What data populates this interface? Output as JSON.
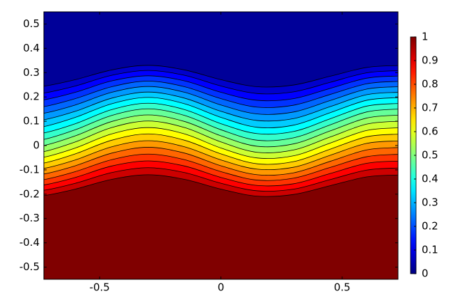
{
  "chart_data": {
    "type": "contour",
    "colormap": "jet",
    "line_color": "#000000",
    "xlim": [
      -0.73,
      0.73
    ],
    "ylim": [
      -0.55,
      0.55
    ],
    "zlim": [
      0,
      1
    ],
    "xticks": [
      -0.5,
      0,
      0.5
    ],
    "yticks": [
      -0.5,
      -0.4,
      -0.3,
      -0.2,
      -0.1,
      0,
      0.1,
      0.2,
      0.3,
      0.4,
      0.5
    ],
    "zticks": [
      0,
      0.1,
      0.2,
      0.3,
      0.4,
      0.5,
      0.6,
      0.7,
      0.8,
      0.9,
      1
    ],
    "x": [
      -0.73,
      -0.6,
      -0.45,
      -0.3,
      -0.15,
      0,
      0.15,
      0.3,
      0.45,
      0.6,
      0.73
    ],
    "contours": [
      {
        "level": 0.05,
        "y": [
          0.244,
          0.271,
          0.311,
          0.33,
          0.311,
          0.271,
          0.242,
          0.249,
          0.285,
          0.321,
          0.329
        ]
      },
      {
        "level": 0.1,
        "y": [
          0.216,
          0.245,
          0.289,
          0.309,
          0.289,
          0.245,
          0.214,
          0.221,
          0.26,
          0.299,
          0.308
        ]
      },
      {
        "level": 0.15,
        "y": [
          0.188,
          0.219,
          0.266,
          0.287,
          0.266,
          0.219,
          0.186,
          0.193,
          0.235,
          0.277,
          0.286
        ]
      },
      {
        "level": 0.2,
        "y": [
          0.16,
          0.193,
          0.242,
          0.265,
          0.242,
          0.193,
          0.158,
          0.166,
          0.21,
          0.254,
          0.264
        ]
      },
      {
        "level": 0.25,
        "y": [
          0.133,
          0.167,
          0.219,
          0.243,
          0.219,
          0.167,
          0.13,
          0.138,
          0.185,
          0.232,
          0.242
        ]
      },
      {
        "level": 0.3,
        "y": [
          0.106,
          0.141,
          0.195,
          0.22,
          0.195,
          0.141,
          0.103,
          0.111,
          0.16,
          0.209,
          0.219
        ]
      },
      {
        "level": 0.35,
        "y": [
          0.078,
          0.116,
          0.172,
          0.198,
          0.172,
          0.116,
          0.075,
          0.084,
          0.135,
          0.186,
          0.197
        ]
      },
      {
        "level": 0.4,
        "y": [
          0.052,
          0.09,
          0.148,
          0.174,
          0.148,
          0.09,
          0.049,
          0.058,
          0.11,
          0.162,
          0.173
        ]
      },
      {
        "level": 0.45,
        "y": [
          0.025,
          0.065,
          0.124,
          0.151,
          0.124,
          0.065,
          0.022,
          0.032,
          0.085,
          0.138,
          0.15
        ]
      },
      {
        "level": 0.5,
        "y": [
          0,
          0.04,
          0.099,
          0.126,
          0.099,
          0.04,
          -0.003,
          0.007,
          0.06,
          0.113,
          0.125
        ]
      },
      {
        "level": 0.55,
        "y": [
          -0.025,
          0.015,
          0.074,
          0.101,
          0.074,
          0.015,
          -0.028,
          -0.018,
          0.035,
          0.088,
          0.1
        ]
      },
      {
        "level": 0.6,
        "y": [
          -0.048,
          -0.01,
          0.048,
          0.074,
          0.048,
          -0.01,
          -0.051,
          -0.042,
          0.01,
          0.062,
          0.073
        ]
      },
      {
        "level": 0.65,
        "y": [
          -0.072,
          -0.034,
          0.022,
          0.048,
          0.022,
          -0.034,
          -0.075,
          -0.066,
          -0.015,
          0.036,
          0.047
        ]
      },
      {
        "level": 0.7,
        "y": [
          -0.094,
          -0.059,
          -0.005,
          0.02,
          -0.005,
          -0.059,
          -0.097,
          -0.089,
          -0.04,
          0.009,
          0.019
        ]
      },
      {
        "level": 0.75,
        "y": [
          -0.117,
          -0.083,
          -0.031,
          -0.007,
          -0.031,
          -0.083,
          -0.12,
          -0.112,
          -0.065,
          -0.018,
          -0.008
        ]
      },
      {
        "level": 0.8,
        "y": [
          -0.14,
          -0.107,
          -0.058,
          -0.035,
          -0.058,
          -0.107,
          -0.142,
          -0.134,
          -0.09,
          -0.046,
          -0.036
        ]
      },
      {
        "level": 0.85,
        "y": [
          -0.162,
          -0.131,
          -0.084,
          -0.063,
          -0.084,
          -0.131,
          -0.164,
          -0.157,
          -0.115,
          -0.073,
          -0.064
        ]
      },
      {
        "level": 0.9,
        "y": [
          -0.184,
          -0.155,
          -0.111,
          -0.091,
          -0.111,
          -0.155,
          -0.186,
          -0.179,
          -0.14,
          -0.101,
          -0.092
        ]
      },
      {
        "level": 0.95,
        "y": [
          -0.206,
          -0.179,
          -0.139,
          -0.12,
          -0.139,
          -0.179,
          -0.208,
          -0.201,
          -0.165,
          -0.129,
          -0.121
        ]
      }
    ]
  }
}
